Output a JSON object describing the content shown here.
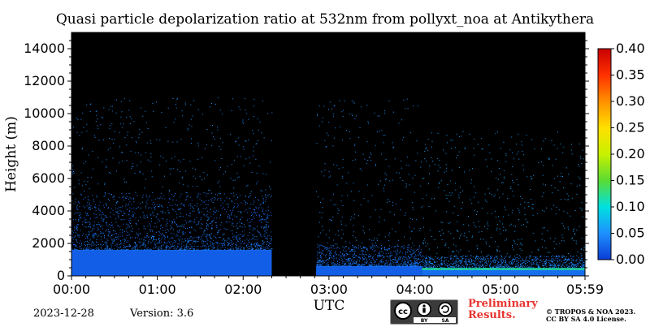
{
  "chart_data": {
    "type": "heatmap",
    "title": "Quasi particle depolarization ratio at 532nm from pollyxt_noa at Antikythera",
    "xlabel": "UTC",
    "ylabel": "Height (m)",
    "x_ticks": [
      "00:00",
      "01:00",
      "02:00",
      "03:00",
      "04:00",
      "05:00",
      "05:59"
    ],
    "y_ticks": [
      "0",
      "2000",
      "4000",
      "6000",
      "8000",
      "10000",
      "12000",
      "14000"
    ],
    "xlim": [
      "00:00",
      "05:59"
    ],
    "ylim": [
      0,
      15000
    ],
    "colorbar": {
      "ticks": [
        "0.00",
        "0.05",
        "0.10",
        "0.15",
        "0.20",
        "0.25",
        "0.30",
        "0.35",
        "0.40"
      ],
      "range": [
        0.0,
        0.4
      ],
      "colors": [
        "#0a3cd6",
        "#1e90ff",
        "#00e0e0",
        "#5adb33",
        "#c8f000",
        "#ffe000",
        "#ff9000",
        "#ff3000",
        "#c80000"
      ]
    },
    "background_color": "#000000",
    "series": [
      {
        "time_range": [
          "00:00",
          "02:20"
        ],
        "dense_layer_top_m": 1600,
        "scatter_top_m": 11000,
        "typical_value": 0.02
      },
      {
        "time_range": [
          "02:20",
          "02:51"
        ],
        "no_data": true
      },
      {
        "time_range": [
          "02:51",
          "04:05"
        ],
        "dense_layer_top_m": 600,
        "scatter_top_m": 11000,
        "typical_value": 0.02
      },
      {
        "time_range": [
          "04:05",
          "05:59"
        ],
        "dense_layer_top_m": 400,
        "scatter_top_m": 9000,
        "typical_value": 0.03,
        "aerosol_layer_value": 0.12
      }
    ]
  },
  "footer": {
    "date": "2023-12-28",
    "version": "Version: 3.6",
    "preliminary_line1": "Preliminary",
    "preliminary_line2": "Results.",
    "copyright_line1": "© TROPOS & NOA 2023.",
    "copyright_line2": "CC BY SA 4.0 License.",
    "license_badge": {
      "cc": "cc",
      "by": "BY",
      "sa": "SA"
    }
  }
}
